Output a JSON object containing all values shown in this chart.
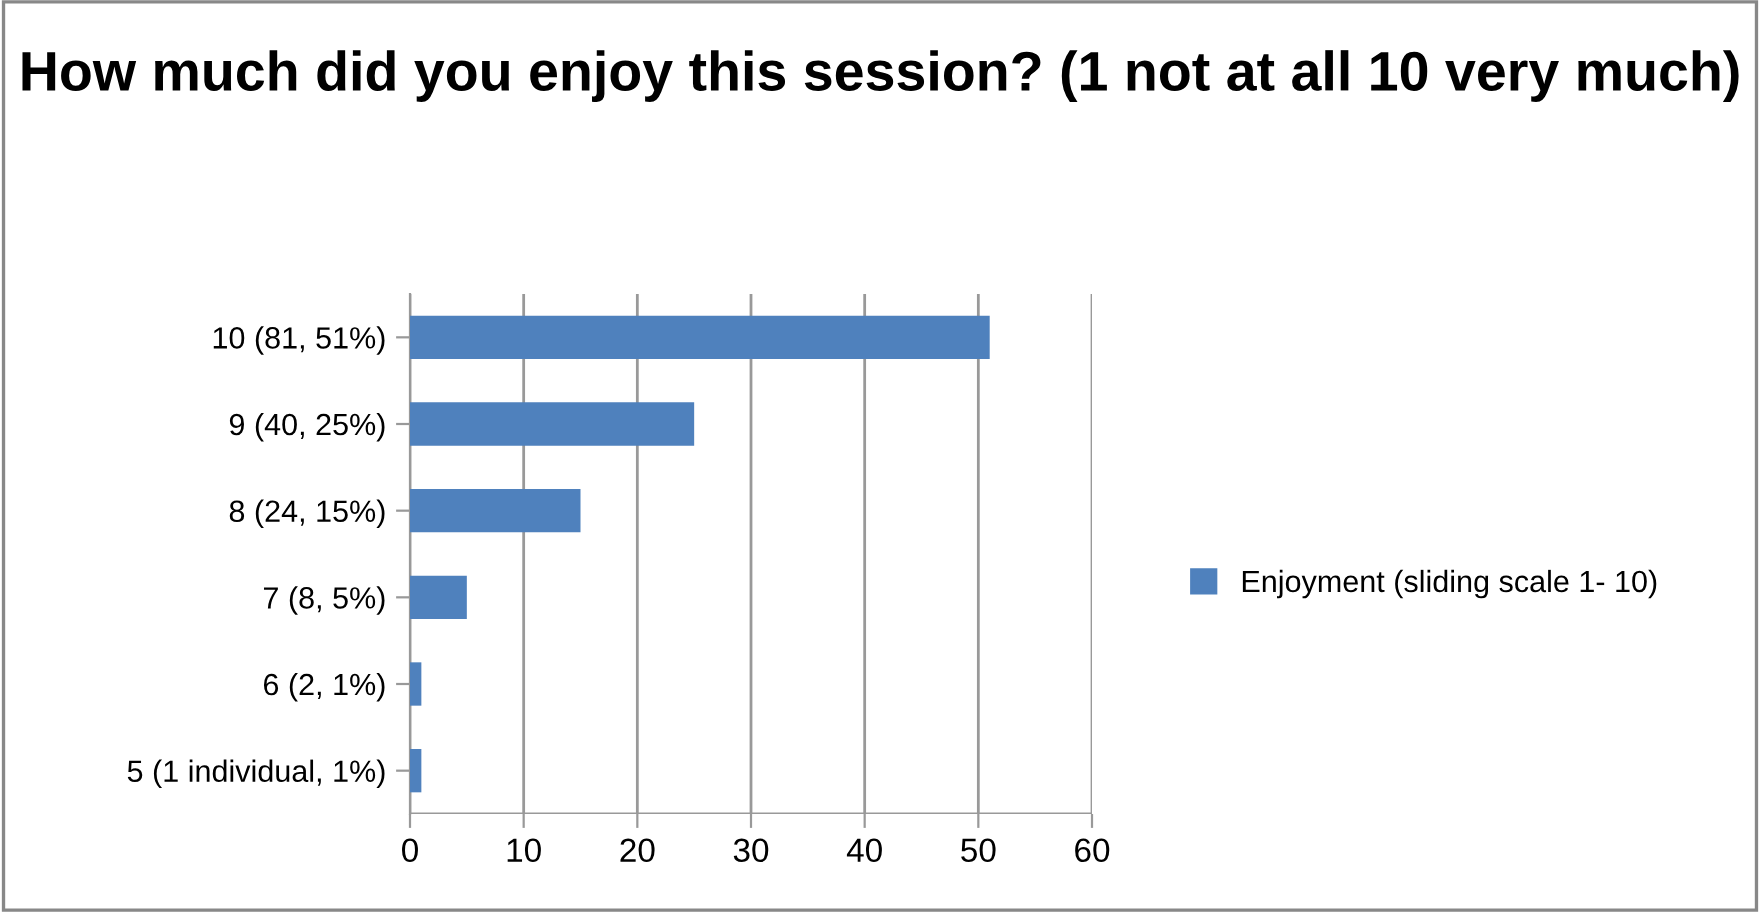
{
  "chart_data": {
    "type": "bar",
    "orientation": "horizontal",
    "title": "How much did you enjoy this session? (1 not at all 10 very much)",
    "categories": [
      "10 (81, 51%)",
      "9 (40, 25%)",
      "8 (24, 15%)",
      "7 (8, 5%)",
      "6 (2, 1%)",
      "5 (1 individual, 1%)"
    ],
    "series": [
      {
        "name": "Enjoyment (sliding scale 1- 10)",
        "color": "#4f81bd",
        "values": [
          51,
          25,
          15,
          5,
          1,
          1
        ]
      }
    ],
    "xlim": [
      0,
      60
    ],
    "xticks": [
      0,
      10,
      20,
      30,
      40,
      50,
      60
    ],
    "grid": "x",
    "legend": "right"
  }
}
